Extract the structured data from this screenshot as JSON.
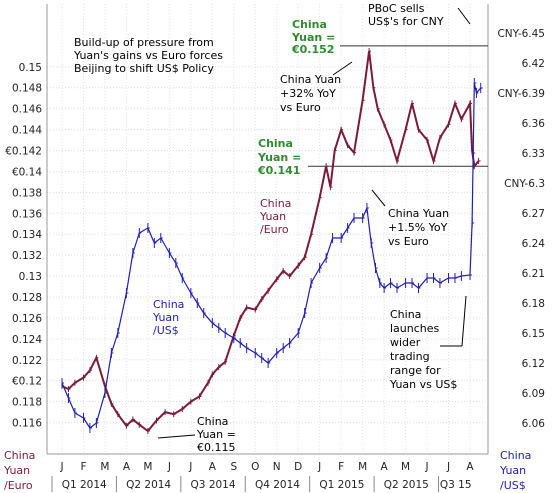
{
  "chart_data": {
    "type": "line",
    "title": [
      "Build-up of pressure from",
      "Yuan's gains vs Euro forces",
      "Beijing to shift US$ Policy"
    ],
    "x_months": [
      "J",
      "F",
      "M",
      "A",
      "M",
      "J",
      "J",
      "A",
      "S",
      "O",
      "N",
      "D",
      "J",
      "F",
      "M",
      "A",
      "M",
      "J",
      "J",
      "A"
    ],
    "x_quarters": [
      "Q1 2014",
      "Q2 2014",
      "Q3 2014",
      "Q4 2014",
      "Q1 2015",
      "Q2 2015",
      "Q3 15"
    ],
    "left_axis": {
      "ylim": [
        0.113,
        0.156
      ],
      "ticks": [
        0.116,
        0.118,
        0.12,
        0.122,
        0.124,
        0.126,
        0.128,
        0.13,
        0.132,
        0.134,
        0.136,
        0.138,
        0.14,
        0.142,
        0.144,
        0.146,
        0.148,
        0.15
      ],
      "tick_labels": [
        "0.116",
        "0.118",
        "€0.12",
        "0.122",
        "0.124",
        "0.126",
        "0.128",
        "0.13",
        "0.132",
        "0.134",
        "0.136",
        "0.138",
        "€0.14",
        "€0.142",
        "0.144",
        "0.146",
        "0.148",
        "0.15"
      ],
      "bottom_label": [
        "China",
        "Yuan",
        "/Euro"
      ]
    },
    "right_axis": {
      "ticks": [
        6.06,
        6.09,
        6.12,
        6.15,
        6.18,
        6.21,
        6.24,
        6.27,
        6.3,
        6.33,
        6.36,
        6.39,
        6.42,
        6.45
      ],
      "tick_labels": [
        "6.06",
        "6.09",
        "6.12",
        "6.15",
        "6.18",
        "6.21",
        "6.24",
        "6.27",
        "CNY-6.3",
        "6.33",
        "6.36",
        "CNY-6.39",
        "6.42",
        "CNY-6.45"
      ],
      "bottom_label": [
        "China",
        "Yuan",
        "/US$"
      ]
    },
    "series": [
      {
        "name": "China Yuan /Euro",
        "color": "#7a1a3c",
        "axis": "left",
        "points": [
          [
            0,
            0.1195
          ],
          [
            0.3,
            0.1192
          ],
          [
            0.6,
            0.1198
          ],
          [
            1,
            0.1203
          ],
          [
            1.3,
            0.121
          ],
          [
            1.6,
            0.1222
          ],
          [
            2,
            0.1195
          ],
          [
            2.3,
            0.1178
          ],
          [
            2.6,
            0.1168
          ],
          [
            3,
            0.1157
          ],
          [
            3.3,
            0.1163
          ],
          [
            3.6,
            0.1158
          ],
          [
            4,
            0.1152
          ],
          [
            4.4,
            0.1162
          ],
          [
            4.8,
            0.117
          ],
          [
            5.2,
            0.1168
          ],
          [
            5.6,
            0.1173
          ],
          [
            6,
            0.118
          ],
          [
            6.4,
            0.1185
          ],
          [
            6.8,
            0.1198
          ],
          [
            7,
            0.1206
          ],
          [
            7.3,
            0.1213
          ],
          [
            7.6,
            0.1218
          ],
          [
            8,
            0.1243
          ],
          [
            8.3,
            0.126
          ],
          [
            8.6,
            0.127
          ],
          [
            9,
            0.1268
          ],
          [
            9.3,
            0.1278
          ],
          [
            9.6,
            0.1286
          ],
          [
            10,
            0.1297
          ],
          [
            10.3,
            0.1305
          ],
          [
            10.6,
            0.13
          ],
          [
            11,
            0.131
          ],
          [
            11.3,
            0.1318
          ],
          [
            11.6,
            0.134
          ],
          [
            12,
            0.1375
          ],
          [
            12.3,
            0.1405
          ],
          [
            12.5,
            0.1385
          ],
          [
            12.7,
            0.142
          ],
          [
            13,
            0.144
          ],
          [
            13.3,
            0.1425
          ],
          [
            13.6,
            0.1418
          ],
          [
            14,
            0.1468
          ],
          [
            14.3,
            0.1515
          ],
          [
            14.5,
            0.148
          ],
          [
            14.7,
            0.146
          ],
          [
            15,
            0.1445
          ],
          [
            15.3,
            0.143
          ],
          [
            15.6,
            0.141
          ],
          [
            16,
            0.144
          ],
          [
            16.3,
            0.1465
          ],
          [
            16.6,
            0.144
          ],
          [
            17,
            0.143
          ],
          [
            17.3,
            0.141
          ],
          [
            17.6,
            0.1432
          ],
          [
            18,
            0.1445
          ],
          [
            18.3,
            0.1465
          ],
          [
            18.6,
            0.145
          ],
          [
            19,
            0.1465
          ],
          [
            19.1,
            0.142
          ],
          [
            19.2,
            0.1405
          ],
          [
            19.4,
            0.141
          ]
        ]
      },
      {
        "name": "China Yuan /US$",
        "color": "#1f1fb0",
        "axis": "right",
        "points": [
          [
            0,
            6.1
          ],
          [
            0.3,
            6.085
          ],
          [
            0.6,
            6.07
          ],
          [
            1,
            6.065
          ],
          [
            1.3,
            6.055
          ],
          [
            1.6,
            6.06
          ],
          [
            2,
            6.09
          ],
          [
            2.3,
            6.13
          ],
          [
            2.6,
            6.15
          ],
          [
            3,
            6.19
          ],
          [
            3.3,
            6.23
          ],
          [
            3.6,
            6.25
          ],
          [
            4,
            6.255
          ],
          [
            4.3,
            6.24
          ],
          [
            4.6,
            6.245
          ],
          [
            5,
            6.23
          ],
          [
            5.3,
            6.22
          ],
          [
            5.6,
            6.205
          ],
          [
            6,
            6.19
          ],
          [
            6.3,
            6.18
          ],
          [
            6.6,
            6.17
          ],
          [
            7,
            6.16
          ],
          [
            7.3,
            6.155
          ],
          [
            7.6,
            6.15
          ],
          [
            8,
            6.145
          ],
          [
            8.3,
            6.14
          ],
          [
            8.6,
            6.135
          ],
          [
            9,
            6.13
          ],
          [
            9.3,
            6.125
          ],
          [
            9.6,
            6.12
          ],
          [
            10,
            6.13
          ],
          [
            10.3,
            6.135
          ],
          [
            10.6,
            6.14
          ],
          [
            11,
            6.15
          ],
          [
            11.3,
            6.17
          ],
          [
            11.6,
            6.2
          ],
          [
            12,
            6.215
          ],
          [
            12.3,
            6.225
          ],
          [
            12.6,
            6.245
          ],
          [
            13,
            6.245
          ],
          [
            13.3,
            6.255
          ],
          [
            13.6,
            6.265
          ],
          [
            14,
            6.265
          ],
          [
            14.2,
            6.275
          ],
          [
            14.4,
            6.24
          ],
          [
            14.6,
            6.215
          ],
          [
            14.8,
            6.2
          ],
          [
            15,
            6.195
          ],
          [
            15.3,
            6.2
          ],
          [
            15.6,
            6.195
          ],
          [
            16,
            6.2
          ],
          [
            16.3,
            6.2
          ],
          [
            16.6,
            6.195
          ],
          [
            17,
            6.205
          ],
          [
            17.3,
            6.205
          ],
          [
            17.6,
            6.2
          ],
          [
            18,
            6.205
          ],
          [
            18.3,
            6.205
          ],
          [
            18.6,
            6.207
          ],
          [
            19,
            6.208
          ],
          [
            19.1,
            6.26
          ],
          [
            19.15,
            6.33
          ],
          [
            19.2,
            6.4
          ],
          [
            19.3,
            6.39
          ],
          [
            19.5,
            6.395
          ]
        ]
      }
    ],
    "reference_lines": [
      {
        "label_top": "China",
        "label_bottom": "Yuan = €0.152",
        "value": 0.152
      },
      {
        "label_top": "China",
        "label_bottom": "Yuan = €0.141",
        "value": 0.1405
      }
    ],
    "annotations": [
      {
        "lines": [
          "China Yuan",
          "+32% YoY",
          "vs Euro"
        ]
      },
      {
        "lines": [
          "China Yuan",
          "+1.5% YoY",
          "vs Euro"
        ]
      },
      {
        "lines": [
          "China",
          "Yuan =",
          "€0.115"
        ]
      },
      {
        "lines": [
          "PBoC sells",
          "US$'s for CNY"
        ]
      },
      {
        "lines": [
          "China",
          "launches",
          "wider",
          "trading",
          "range for",
          "Yuan vs US$"
        ]
      }
    ],
    "series_labels": {
      "euro": [
        "China",
        "Yuan",
        "/Euro"
      ],
      "usd": [
        "China",
        "Yuan",
        "/US$"
      ]
    },
    "grid": true
  }
}
